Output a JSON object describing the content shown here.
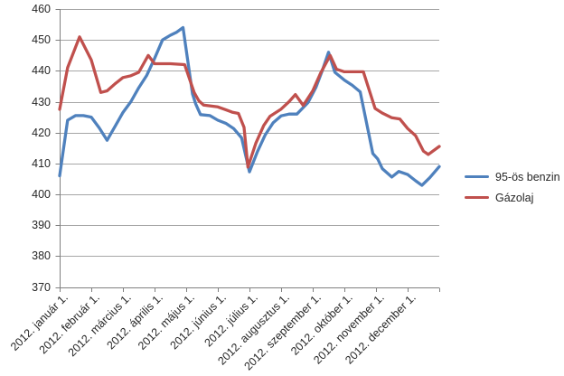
{
  "chart": {
    "background": "#ffffff",
    "text_color": "#262626",
    "gridline_color": "#a6a6a6",
    "axis_color": "#808080"
  },
  "legend": {
    "position": "right",
    "items": [
      {
        "label": "95-ös benzin",
        "color": "#4F81BD"
      },
      {
        "label": "Gázolaj",
        "color": "#C0504D"
      }
    ]
  },
  "chart_data": {
    "type": "line",
    "title": "",
    "xlabel": "",
    "ylabel": "",
    "grid": "horizontal",
    "legend_position": "right",
    "x_unit": "months since 2012. január 1. (0 = január 1., 11 = december 1., 12 = year end)",
    "x_categories": [
      "2012. január 1.",
      "2012. február 1.",
      "2012. március 1.",
      "2012. április 1.",
      "2012. május 1.",
      "2012. június 1.",
      "2012. július 1.",
      "2012. augusztus 1.",
      "2012. szeptember 1.",
      "2012. október 1.",
      "2012. november 1.",
      "2012. december 1."
    ],
    "y_axis": {
      "min": 370,
      "max": 460,
      "step": 10,
      "ticks": [
        460,
        450,
        440,
        430,
        420,
        410,
        400,
        390,
        380,
        370
      ]
    },
    "series": [
      {
        "name": "95-ös benzin",
        "color": "#4F81BD",
        "points": [
          [
            0,
            406
          ],
          [
            0.25,
            424
          ],
          [
            0.5,
            425.5
          ],
          [
            0.75,
            425.5
          ],
          [
            1,
            425
          ],
          [
            1.25,
            421.5
          ],
          [
            1.5,
            417.5
          ],
          [
            1.75,
            422
          ],
          [
            2,
            426.5
          ],
          [
            2.25,
            430
          ],
          [
            2.5,
            434.5
          ],
          [
            2.75,
            438.5
          ],
          [
            3,
            444
          ],
          [
            3.25,
            450
          ],
          [
            3.5,
            451.5
          ],
          [
            3.7,
            452.5
          ],
          [
            3.9,
            454
          ],
          [
            4.2,
            432.5
          ],
          [
            4.3,
            429.3
          ],
          [
            4.45,
            425.8
          ],
          [
            4.75,
            425.5
          ],
          [
            5,
            424
          ],
          [
            5.25,
            423
          ],
          [
            5.5,
            421.3
          ],
          [
            5.75,
            418.3
          ],
          [
            6,
            407.3
          ],
          [
            6.25,
            413.8
          ],
          [
            6.5,
            419.3
          ],
          [
            6.75,
            423.2
          ],
          [
            7,
            425.4
          ],
          [
            7.25,
            426
          ],
          [
            7.5,
            426
          ],
          [
            7.85,
            429.7
          ],
          [
            8.1,
            434.6
          ],
          [
            8.3,
            440
          ],
          [
            8.5,
            446
          ],
          [
            8.7,
            439.5
          ],
          [
            9,
            437
          ],
          [
            9.25,
            435.3
          ],
          [
            9.5,
            433.2
          ],
          [
            9.9,
            413.2
          ],
          [
            10.05,
            411.5
          ],
          [
            10.2,
            408.3
          ],
          [
            10.5,
            405.6
          ],
          [
            10.72,
            407.4
          ],
          [
            11,
            406.4
          ],
          [
            11.25,
            404.4
          ],
          [
            11.45,
            402.9
          ],
          [
            11.7,
            405.4
          ],
          [
            12,
            409
          ]
        ]
      },
      {
        "name": "Gázolaj",
        "color": "#C0504D",
        "points": [
          [
            0,
            427.5
          ],
          [
            0.25,
            441
          ],
          [
            0.63,
            451
          ],
          [
            1,
            443.5
          ],
          [
            1.3,
            433
          ],
          [
            1.5,
            433.5
          ],
          [
            1.75,
            435.8
          ],
          [
            2,
            437.8
          ],
          [
            2.25,
            438.4
          ],
          [
            2.5,
            439.5
          ],
          [
            2.8,
            445
          ],
          [
            3,
            442.3
          ],
          [
            3.5,
            442.3
          ],
          [
            3.95,
            442
          ],
          [
            4.25,
            433
          ],
          [
            4.4,
            430.3
          ],
          [
            4.55,
            428.9
          ],
          [
            5,
            428.3
          ],
          [
            5.25,
            427.4
          ],
          [
            5.45,
            426.6
          ],
          [
            5.65,
            426.2
          ],
          [
            5.83,
            421.7
          ],
          [
            5.95,
            408.8
          ],
          [
            6.2,
            416.5
          ],
          [
            6.45,
            422.3
          ],
          [
            6.65,
            425.3
          ],
          [
            7,
            427.6
          ],
          [
            7.25,
            430
          ],
          [
            7.45,
            432.3
          ],
          [
            7.7,
            428.8
          ],
          [
            8,
            433.5
          ],
          [
            8.25,
            439.3
          ],
          [
            8.55,
            445
          ],
          [
            8.75,
            440.5
          ],
          [
            9,
            439.7
          ],
          [
            9.6,
            439.7
          ],
          [
            9.97,
            427.8
          ],
          [
            10.2,
            426.3
          ],
          [
            10.5,
            424.8
          ],
          [
            10.75,
            424.4
          ],
          [
            11,
            421.3
          ],
          [
            11.25,
            419
          ],
          [
            11.5,
            414
          ],
          [
            11.65,
            412.9
          ],
          [
            12,
            415.5
          ]
        ]
      }
    ]
  }
}
